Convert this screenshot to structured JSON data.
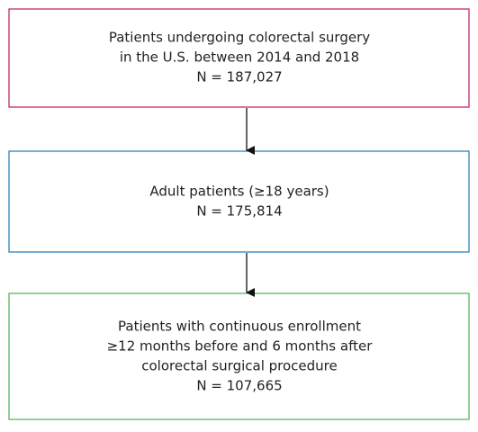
{
  "nodes": [
    {
      "lines": [
        "Patients undergoing colorectal surgery",
        "in the U.S. between 2014 and 2018",
        "N = 187,027"
      ]
    },
    {
      "lines": [
        "Adult patients (≥18 years)",
        "N = 175,814"
      ]
    },
    {
      "lines": [
        "Patients with continuous enrollment",
        "≥12 months before and 6 months after",
        "colorectal surgical procedure",
        "N = 107,665"
      ]
    }
  ]
}
